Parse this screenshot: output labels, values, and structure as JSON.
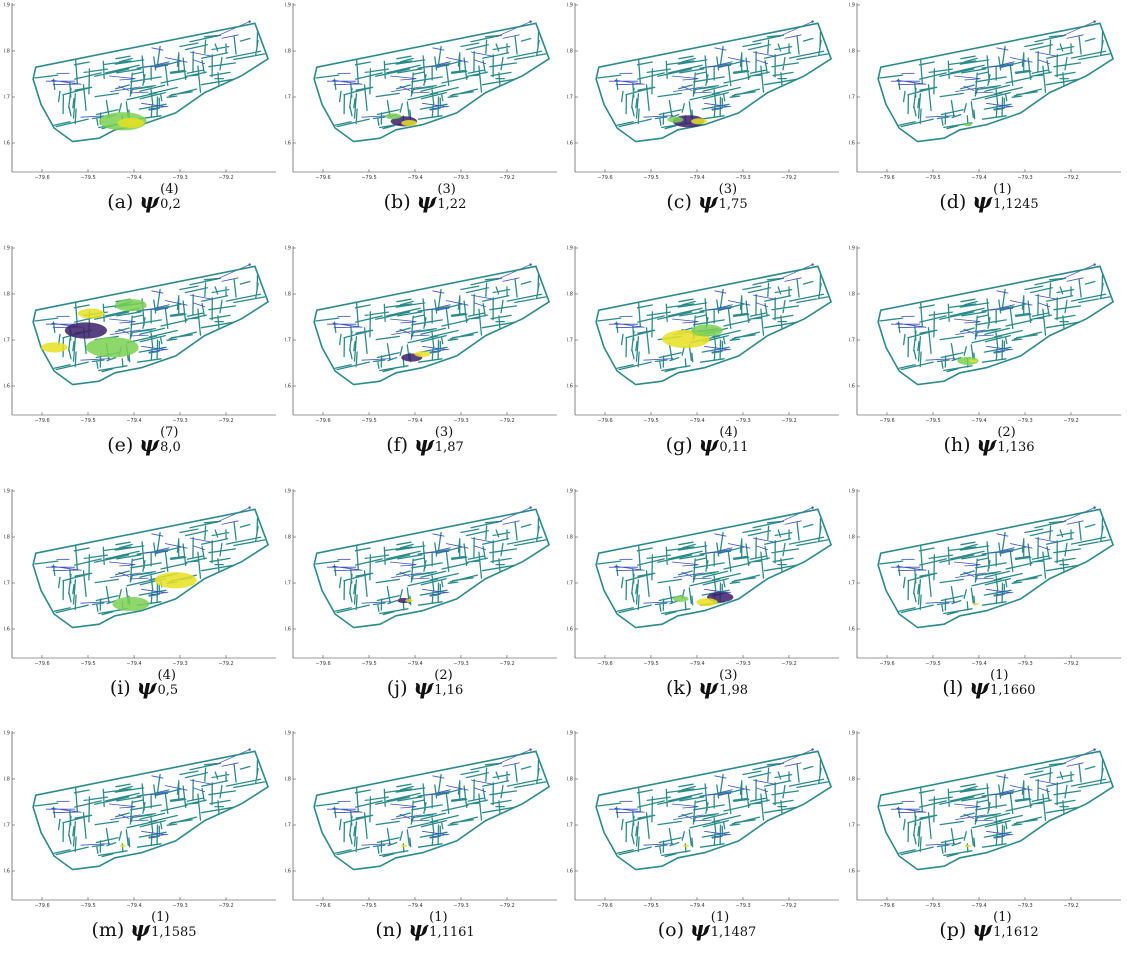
{
  "colors": {
    "base": "#2a8b8b",
    "blue": "#3b4fc4",
    "yellow": "#e8e022",
    "green": "#7ad151",
    "purple": "#3b1f6b"
  },
  "xticks": [
    "−79.6",
    "−79.5",
    "−79.4",
    "−79.3",
    "−79.2"
  ],
  "yticks": [
    "43.9",
    "43.8",
    "43.7",
    "43.6"
  ],
  "panels": [
    {
      "label": "(a)",
      "sup": "(4)",
      "sub": "0,2"
    },
    {
      "label": "(b)",
      "sup": "(3)",
      "sub": "1,22"
    },
    {
      "label": "(c)",
      "sup": "(3)",
      "sub": "1,75"
    },
    {
      "label": "(d)",
      "sup": "(1)",
      "sub": "1,1245"
    },
    {
      "label": "(e)",
      "sup": "(7)",
      "sub": "8,0"
    },
    {
      "label": "(f)",
      "sup": "(3)",
      "sub": "1,87"
    },
    {
      "label": "(g)",
      "sup": "(4)",
      "sub": "0,11"
    },
    {
      "label": "(h)",
      "sup": "(2)",
      "sub": "1,136"
    },
    {
      "label": "(i)",
      "sup": "(4)",
      "sub": "0,5"
    },
    {
      "label": "(j)",
      "sup": "(2)",
      "sub": "1,16"
    },
    {
      "label": "(k)",
      "sup": "(3)",
      "sub": "1,98"
    },
    {
      "label": "(l)",
      "sup": "(1)",
      "sub": "1,1660"
    },
    {
      "label": "(m)",
      "sup": "(1)",
      "sub": "1,1585"
    },
    {
      "label": "(n)",
      "sup": "(1)",
      "sub": "1,1161"
    },
    {
      "label": "(o)",
      "sup": "(1)",
      "sub": "1,1487"
    },
    {
      "label": "(p)",
      "sup": "(1)",
      "sub": "1,1612"
    }
  ]
}
